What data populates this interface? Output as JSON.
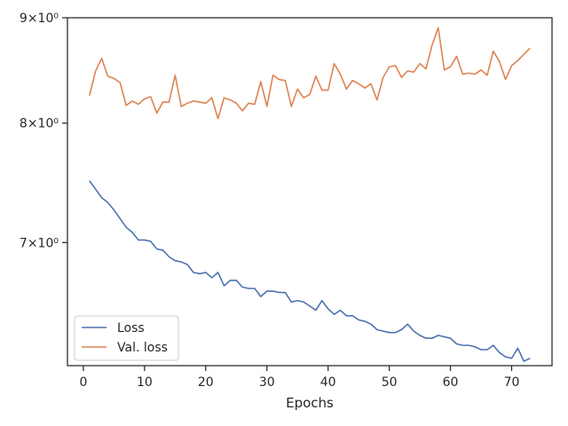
{
  "chart_data": {
    "type": "line",
    "title": "",
    "xlabel": "Epochs",
    "ylabel": "",
    "yscale": "log",
    "xlim": [
      -2.6,
      76.6
    ],
    "ylim": [
      6.1,
      9.0
    ],
    "xticks": [
      0,
      10,
      20,
      30,
      40,
      50,
      60,
      70
    ],
    "yticks": [
      {
        "value": 7,
        "label": "7×10⁰"
      },
      {
        "value": 8,
        "label": "8×10⁰"
      },
      {
        "value": 9,
        "label": "9×10⁰"
      }
    ],
    "grid": false,
    "legend_position": "lower-left",
    "x": [
      1,
      2,
      3,
      4,
      5,
      6,
      7,
      8,
      9,
      10,
      11,
      12,
      13,
      14,
      15,
      16,
      17,
      18,
      19,
      20,
      21,
      22,
      23,
      24,
      25,
      26,
      27,
      28,
      29,
      30,
      31,
      32,
      33,
      34,
      35,
      36,
      37,
      38,
      39,
      40,
      41,
      42,
      43,
      44,
      45,
      46,
      47,
      48,
      49,
      50,
      51,
      52,
      53,
      54,
      55,
      56,
      57,
      58,
      59,
      60,
      61,
      62,
      63,
      64,
      65,
      66,
      67,
      68,
      69,
      70,
      71,
      72,
      73
    ],
    "series": [
      {
        "name": "Loss",
        "color": "#4c72b0",
        "values": [
          7.5,
          7.43,
          7.36,
          7.32,
          7.26,
          7.19,
          7.12,
          7.08,
          7.02,
          7.02,
          7.01,
          6.95,
          6.94,
          6.89,
          6.86,
          6.85,
          6.83,
          6.77,
          6.76,
          6.77,
          6.73,
          6.77,
          6.67,
          6.71,
          6.71,
          6.66,
          6.65,
          6.65,
          6.59,
          6.63,
          6.63,
          6.62,
          6.62,
          6.55,
          6.56,
          6.55,
          6.52,
          6.49,
          6.56,
          6.5,
          6.46,
          6.49,
          6.45,
          6.45,
          6.42,
          6.41,
          6.39,
          6.35,
          6.34,
          6.33,
          6.33,
          6.35,
          6.39,
          6.34,
          6.31,
          6.29,
          6.29,
          6.31,
          6.3,
          6.29,
          6.25,
          6.24,
          6.24,
          6.23,
          6.21,
          6.21,
          6.24,
          6.19,
          6.16,
          6.15,
          6.22,
          6.13,
          6.15
        ]
      },
      {
        "name": "Val. loss",
        "color": "#dd8452",
        "values": [
          8.25,
          8.48,
          8.6,
          8.43,
          8.41,
          8.37,
          8.16,
          8.2,
          8.17,
          8.22,
          8.24,
          8.09,
          8.19,
          8.19,
          8.44,
          8.15,
          8.18,
          8.2,
          8.19,
          8.18,
          8.23,
          8.04,
          8.23,
          8.21,
          8.18,
          8.11,
          8.18,
          8.17,
          8.38,
          8.15,
          8.44,
          8.4,
          8.39,
          8.15,
          8.31,
          8.23,
          8.26,
          8.43,
          8.3,
          8.3,
          8.55,
          8.45,
          8.31,
          8.39,
          8.36,
          8.32,
          8.36,
          8.21,
          8.42,
          8.52,
          8.53,
          8.42,
          8.48,
          8.47,
          8.55,
          8.5,
          8.73,
          8.9,
          8.49,
          8.52,
          8.62,
          8.45,
          8.46,
          8.45,
          8.49,
          8.44,
          8.67,
          8.57,
          8.4,
          8.53,
          8.58,
          8.64,
          8.7
        ]
      }
    ]
  }
}
